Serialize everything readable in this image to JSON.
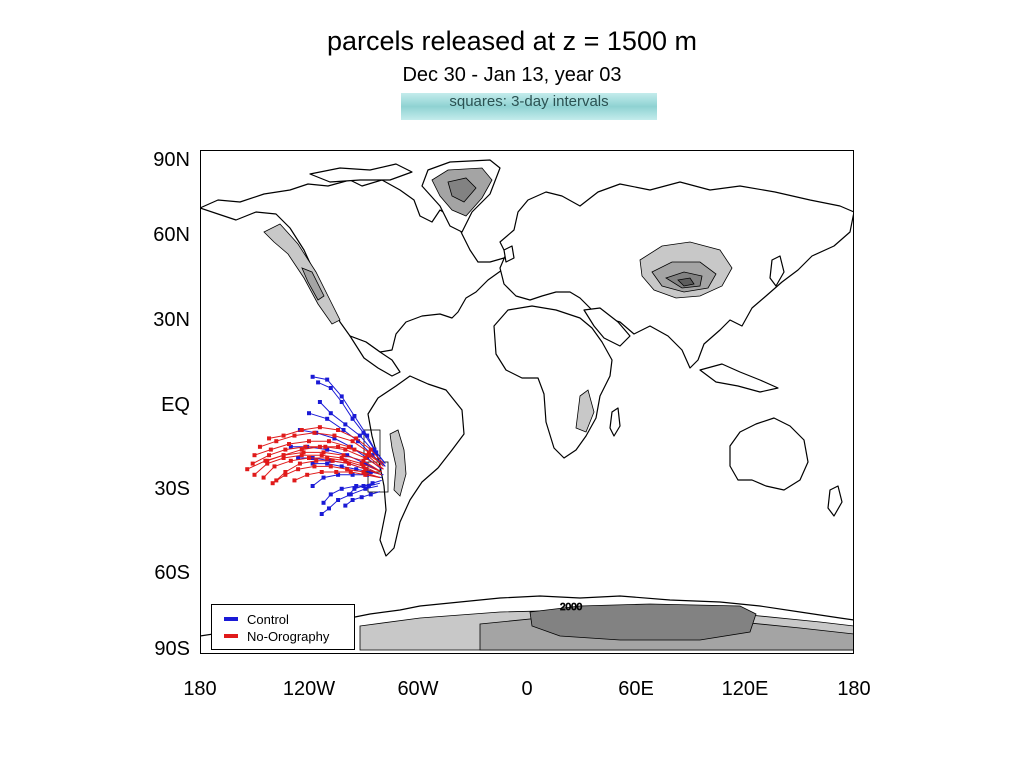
{
  "title": "parcels released at z = 1500 m",
  "subtitle": "Dec 30 - Jan 13, year 03",
  "note": "squares: 3-day intervals",
  "lat_labels": [
    "90N",
    "60N",
    "30N",
    "EQ",
    "30S",
    "60S",
    "90S"
  ],
  "lon_labels": [
    "180",
    "120W",
    "60W",
    "0",
    "60E",
    "120E",
    "180"
  ],
  "contour_label": "2000",
  "legend": [
    {
      "name": "Control",
      "color": "#1a1ad6"
    },
    {
      "name": "No-Orography",
      "color": "#e01a1a"
    }
  ],
  "colors": {
    "control": "#1a1ad6",
    "no_orography": "#e01a1a",
    "elev_1": "#c8c8c8",
    "elev_2": "#a4a4a4",
    "elev_3": "#828282",
    "elev_4": "#5e5e5e"
  },
  "release_region": {
    "lon": [
      -85,
      -75
    ],
    "lat": [
      -35,
      -20
    ]
  },
  "trajectories": {
    "control": [
      [
        [
          -78,
          -22
        ],
        [
          -83,
          -18
        ],
        [
          -88,
          -12
        ],
        [
          -95,
          -5
        ],
        [
          -102,
          2
        ],
        [
          -110,
          8
        ],
        [
          -118,
          9
        ]
      ],
      [
        [
          -78,
          -22
        ],
        [
          -84,
          -17
        ],
        [
          -90,
          -11
        ],
        [
          -96,
          -6
        ],
        [
          -102,
          0
        ],
        [
          -108,
          5
        ],
        [
          -115,
          7
        ]
      ],
      [
        [
          -78,
          -23
        ],
        [
          -84,
          -18
        ],
        [
          -92,
          -12
        ],
        [
          -100,
          -8
        ],
        [
          -108,
          -4
        ],
        [
          -114,
          0
        ]
      ],
      [
        [
          -78,
          -23
        ],
        [
          -85,
          -19
        ],
        [
          -93,
          -14
        ],
        [
          -101,
          -10
        ],
        [
          -110,
          -6
        ],
        [
          -120,
          -4
        ]
      ],
      [
        [
          -80,
          -24
        ],
        [
          -88,
          -20
        ],
        [
          -97,
          -16
        ],
        [
          -106,
          -13
        ],
        [
          -116,
          -11
        ],
        [
          -125,
          -10
        ]
      ],
      [
        [
          -80,
          -25
        ],
        [
          -89,
          -22
        ],
        [
          -99,
          -19
        ],
        [
          -110,
          -17
        ],
        [
          -121,
          -16
        ],
        [
          -130,
          -16
        ]
      ],
      [
        [
          -80,
          -26
        ],
        [
          -89,
          -24
        ],
        [
          -98,
          -22
        ],
        [
          -108,
          -21
        ],
        [
          -118,
          -20
        ],
        [
          -126,
          -20
        ]
      ],
      [
        [
          -79,
          -26
        ],
        [
          -86,
          -25
        ],
        [
          -94,
          -24
        ],
        [
          -102,
          -23
        ],
        [
          -110,
          -22
        ],
        [
          -118,
          -22
        ]
      ],
      [
        [
          -80,
          -27
        ],
        [
          -88,
          -26
        ],
        [
          -96,
          -26
        ],
        [
          -104,
          -26
        ],
        [
          -112,
          -27
        ],
        [
          -118,
          -30
        ]
      ],
      [
        [
          -81,
          -29
        ],
        [
          -87,
          -30
        ],
        [
          -94,
          -30
        ],
        [
          -102,
          -31
        ],
        [
          -108,
          -33
        ],
        [
          -112,
          -36
        ]
      ],
      [
        [
          -82,
          -30
        ],
        [
          -89,
          -31
        ],
        [
          -97,
          -33
        ],
        [
          -104,
          -35
        ],
        [
          -109,
          -38
        ],
        [
          -113,
          -40
        ]
      ],
      [
        [
          -81,
          -32
        ],
        [
          -86,
          -33
        ],
        [
          -91,
          -34
        ],
        [
          -96,
          -35
        ],
        [
          -100,
          -37
        ]
      ],
      [
        [
          -80,
          -28
        ],
        [
          -85,
          -29
        ],
        [
          -90,
          -30
        ],
        [
          -95,
          -31
        ],
        [
          -98,
          -33
        ]
      ]
    ],
    "no_orography": [
      [
        [
          -79,
          -22
        ],
        [
          -86,
          -17
        ],
        [
          -94,
          -13
        ],
        [
          -104,
          -10
        ],
        [
          -114,
          -9
        ],
        [
          -124,
          -10
        ],
        [
          -134,
          -12
        ],
        [
          -142,
          -13
        ]
      ],
      [
        [
          -79,
          -23
        ],
        [
          -87,
          -18
        ],
        [
          -96,
          -14
        ],
        [
          -106,
          -12
        ],
        [
          -117,
          -11
        ],
        [
          -128,
          -12
        ],
        [
          -138,
          -14
        ],
        [
          -147,
          -16
        ]
      ],
      [
        [
          -79,
          -24
        ],
        [
          -88,
          -19
        ],
        [
          -98,
          -16
        ],
        [
          -109,
          -14
        ],
        [
          -120,
          -14
        ],
        [
          -131,
          -15
        ],
        [
          -141,
          -17
        ],
        [
          -150,
          -19
        ]
      ],
      [
        [
          -79,
          -24
        ],
        [
          -89,
          -20
        ],
        [
          -100,
          -17
        ],
        [
          -111,
          -16
        ],
        [
          -122,
          -16
        ],
        [
          -133,
          -17
        ],
        [
          -142,
          -19
        ],
        [
          -151,
          -22
        ]
      ],
      [
        [
          -80,
          -25
        ],
        [
          -90,
          -21
        ],
        [
          -101,
          -19
        ],
        [
          -112,
          -18
        ],
        [
          -123,
          -18
        ],
        [
          -134,
          -19
        ],
        [
          -144,
          -21
        ],
        [
          -154,
          -24
        ]
      ],
      [
        [
          -80,
          -25
        ],
        [
          -91,
          -22
        ],
        [
          -102,
          -20
        ],
        [
          -113,
          -19
        ],
        [
          -124,
          -19
        ],
        [
          -134,
          -20
        ],
        [
          -143,
          -22
        ],
        [
          -150,
          -26
        ]
      ],
      [
        [
          -80,
          -26
        ],
        [
          -90,
          -23
        ],
        [
          -100,
          -21
        ],
        [
          -110,
          -20
        ],
        [
          -120,
          -20
        ],
        [
          -130,
          -21
        ],
        [
          -139,
          -23
        ],
        [
          -145,
          -27
        ]
      ],
      [
        [
          -80,
          -26
        ],
        [
          -89,
          -24
        ],
        [
          -98,
          -22
        ],
        [
          -107,
          -21
        ],
        [
          -116,
          -21
        ],
        [
          -125,
          -22
        ],
        [
          -133,
          -25
        ],
        [
          -138,
          -28
        ]
      ],
      [
        [
          -81,
          -27
        ],
        [
          -90,
          -25
        ],
        [
          -99,
          -24
        ],
        [
          -108,
          -23
        ],
        [
          -117,
          -23
        ],
        [
          -126,
          -24
        ],
        [
          -133,
          -26
        ],
        [
          -140,
          -29
        ]
      ],
      [
        [
          -81,
          -27
        ],
        [
          -89,
          -26
        ],
        [
          -97,
          -25
        ],
        [
          -105,
          -25
        ],
        [
          -113,
          -25
        ],
        [
          -121,
          -26
        ],
        [
          -128,
          -28
        ]
      ],
      [
        [
          -80,
          -22
        ],
        [
          -87,
          -19
        ],
        [
          -95,
          -17
        ],
        [
          -104,
          -16
        ],
        [
          -114,
          -16
        ],
        [
          -124,
          -17
        ],
        [
          -134,
          -19
        ],
        [
          -143,
          -21
        ]
      ]
    ]
  }
}
